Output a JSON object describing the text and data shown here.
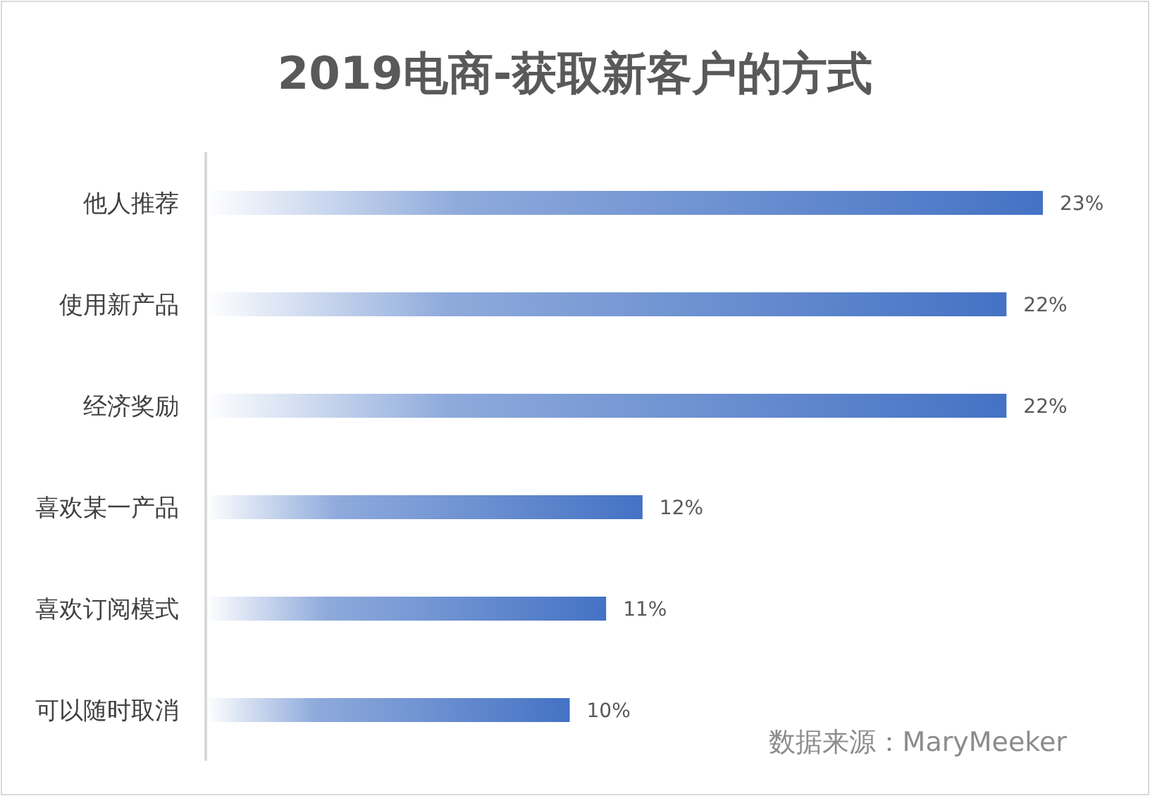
{
  "chart_data": {
    "type": "bar",
    "orientation": "horizontal",
    "title": "2019电商-获取新客户的方式",
    "categories": [
      "他人推荐",
      "使用新产品",
      "经济奖励",
      "喜欢某一产品",
      "喜欢订阅模式",
      "可以随时取消"
    ],
    "values": [
      23,
      22,
      22,
      12,
      11,
      10
    ],
    "value_labels": [
      "23%",
      "22%",
      "22%",
      "12%",
      "11%",
      "10%"
    ],
    "color": "#4472c4",
    "annotations": [
      "数据来源：MaryMeeker"
    ]
  }
}
